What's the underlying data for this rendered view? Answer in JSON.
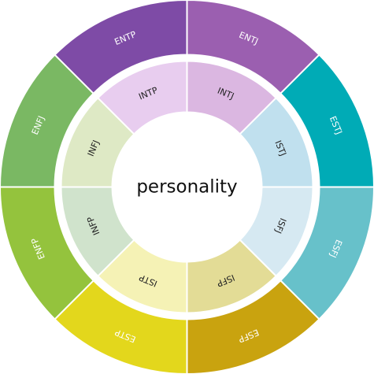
{
  "center": {
    "label": "personality"
  },
  "outer_ring": {
    "labels": [
      "ENTJ",
      "ESTJ",
      "ESFJ",
      "ESFP",
      "ESTP",
      "ENFP",
      "ENFJ",
      "ENTP"
    ]
  },
  "inner_ring": {
    "labels": [
      "INTJ",
      "ISTJ",
      "ISFJ",
      "ISFP",
      "ISTP",
      "INFP",
      "INFJ",
      "INTP"
    ]
  }
}
